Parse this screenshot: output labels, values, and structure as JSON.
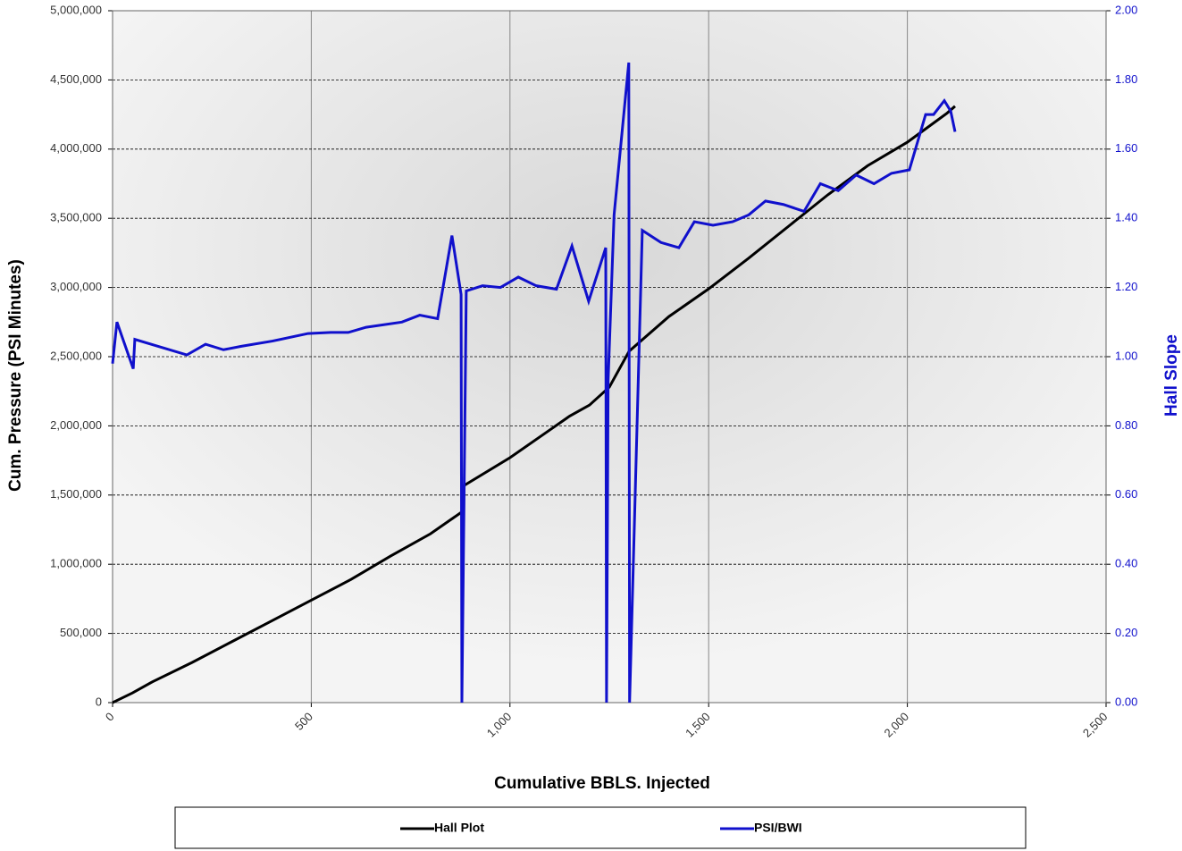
{
  "chart_data": {
    "type": "line",
    "x_label": "Cumulative BBLS. Injected",
    "y_label": "Cum. Pressure (PSI Minutes)",
    "y2_label": "Hall Slope",
    "xlim": [
      0,
      2500
    ],
    "xticks": [
      0,
      500,
      {
        "value": 1000,
        "label": "1,000"
      },
      {
        "value": 1500,
        "label": "1,500"
      },
      {
        "value": 2000,
        "label": "2,000"
      },
      {
        "value": 2500,
        "label": "2,500"
      }
    ],
    "ylim": [
      0,
      5000000
    ],
    "yticks": [
      0,
      {
        "value": 500000,
        "label": "500,000"
      },
      {
        "value": 1000000,
        "label": "1,000,000"
      },
      {
        "value": 1500000,
        "label": "1,500,000"
      },
      {
        "value": 2000000,
        "label": "2,000,000"
      },
      {
        "value": 2500000,
        "label": "2,500,000"
      },
      {
        "value": 3000000,
        "label": "3,000,000"
      },
      {
        "value": 3500000,
        "label": "3,500,000"
      },
      {
        "value": 4000000,
        "label": "4,000,000"
      },
      {
        "value": 4500000,
        "label": "4,500,000"
      },
      {
        "value": 5000000,
        "label": "5,000,000"
      }
    ],
    "y2lim": [
      0,
      2
    ],
    "y2ticks": [
      {
        "value": 0,
        "label": "0.00"
      },
      {
        "value": 0.2,
        "label": "0.20"
      },
      {
        "value": 0.4,
        "label": "0.40"
      },
      {
        "value": 0.6,
        "label": "0.60"
      },
      {
        "value": 0.8,
        "label": "0.80"
      },
      {
        "value": 1,
        "label": "1.00"
      },
      {
        "value": 1.2,
        "label": "1.20"
      },
      {
        "value": 1.4,
        "label": "1.40"
      },
      {
        "value": 1.6,
        "label": "1.60"
      },
      {
        "value": 1.8,
        "label": "1.80"
      },
      {
        "value": 2,
        "label": "2.00"
      }
    ],
    "grid": true,
    "legend": "bottom",
    "series": [
      {
        "name": "Hall Plot",
        "color": "#000000",
        "x": [
          0,
          50,
          100,
          200,
          300,
          400,
          500,
          600,
          700,
          800,
          850,
          880,
          885,
          1000,
          1100,
          1150,
          1200,
          1250,
          1300,
          1400,
          1500,
          1600,
          1700,
          1800,
          1900,
          2000,
          2100,
          2120
        ],
        "values": [
          0,
          70000,
          150000,
          290000,
          440000,
          590000,
          740000,
          890000,
          1060000,
          1220000,
          1320000,
          1380000,
          1570000,
          1770000,
          1970000,
          2070000,
          2150000,
          2280000,
          2540000,
          2790000,
          2990000,
          3210000,
          3440000,
          3670000,
          3880000,
          4050000,
          4260000,
          4310000
        ]
      },
      {
        "name": "PSI/BWI",
        "color": "#1010cc",
        "axis": "y2",
        "x": [
          0,
          11,
          52,
          56,
          187,
          234,
          279,
          324,
          402,
          492,
          549,
          593,
          638,
          728,
          773,
          818,
          854,
          877,
          879,
          890,
          931,
          976,
          1021,
          1066,
          1117,
          1156,
          1198,
          1241,
          1243,
          1247,
          1262,
          1283,
          1299,
          1301,
          1333,
          1380,
          1425,
          1464,
          1511,
          1560,
          1601,
          1643,
          1688,
          1740,
          1781,
          1826,
          1871,
          1916,
          1960,
          2005,
          2046,
          2066,
          2093,
          2109,
          2120
        ],
        "values": [
          0.98,
          1.1,
          0.965,
          1.05,
          1.005,
          1.036,
          1.02,
          1.03,
          1.045,
          1.067,
          1.07,
          1.07,
          1.085,
          1.1,
          1.12,
          1.11,
          1.35,
          1.18,
          0,
          1.19,
          1.205,
          1.2,
          1.23,
          1.205,
          1.195,
          1.32,
          1.16,
          1.315,
          0,
          0.93,
          1.41,
          1.66,
          1.85,
          0,
          1.365,
          1.33,
          1.315,
          1.39,
          1.38,
          1.39,
          1.41,
          1.45,
          1.44,
          1.42,
          1.5,
          1.48,
          1.525,
          1.5,
          1.53,
          1.54,
          1.7,
          1.7,
          1.74,
          1.71,
          1.65
        ]
      }
    ]
  }
}
